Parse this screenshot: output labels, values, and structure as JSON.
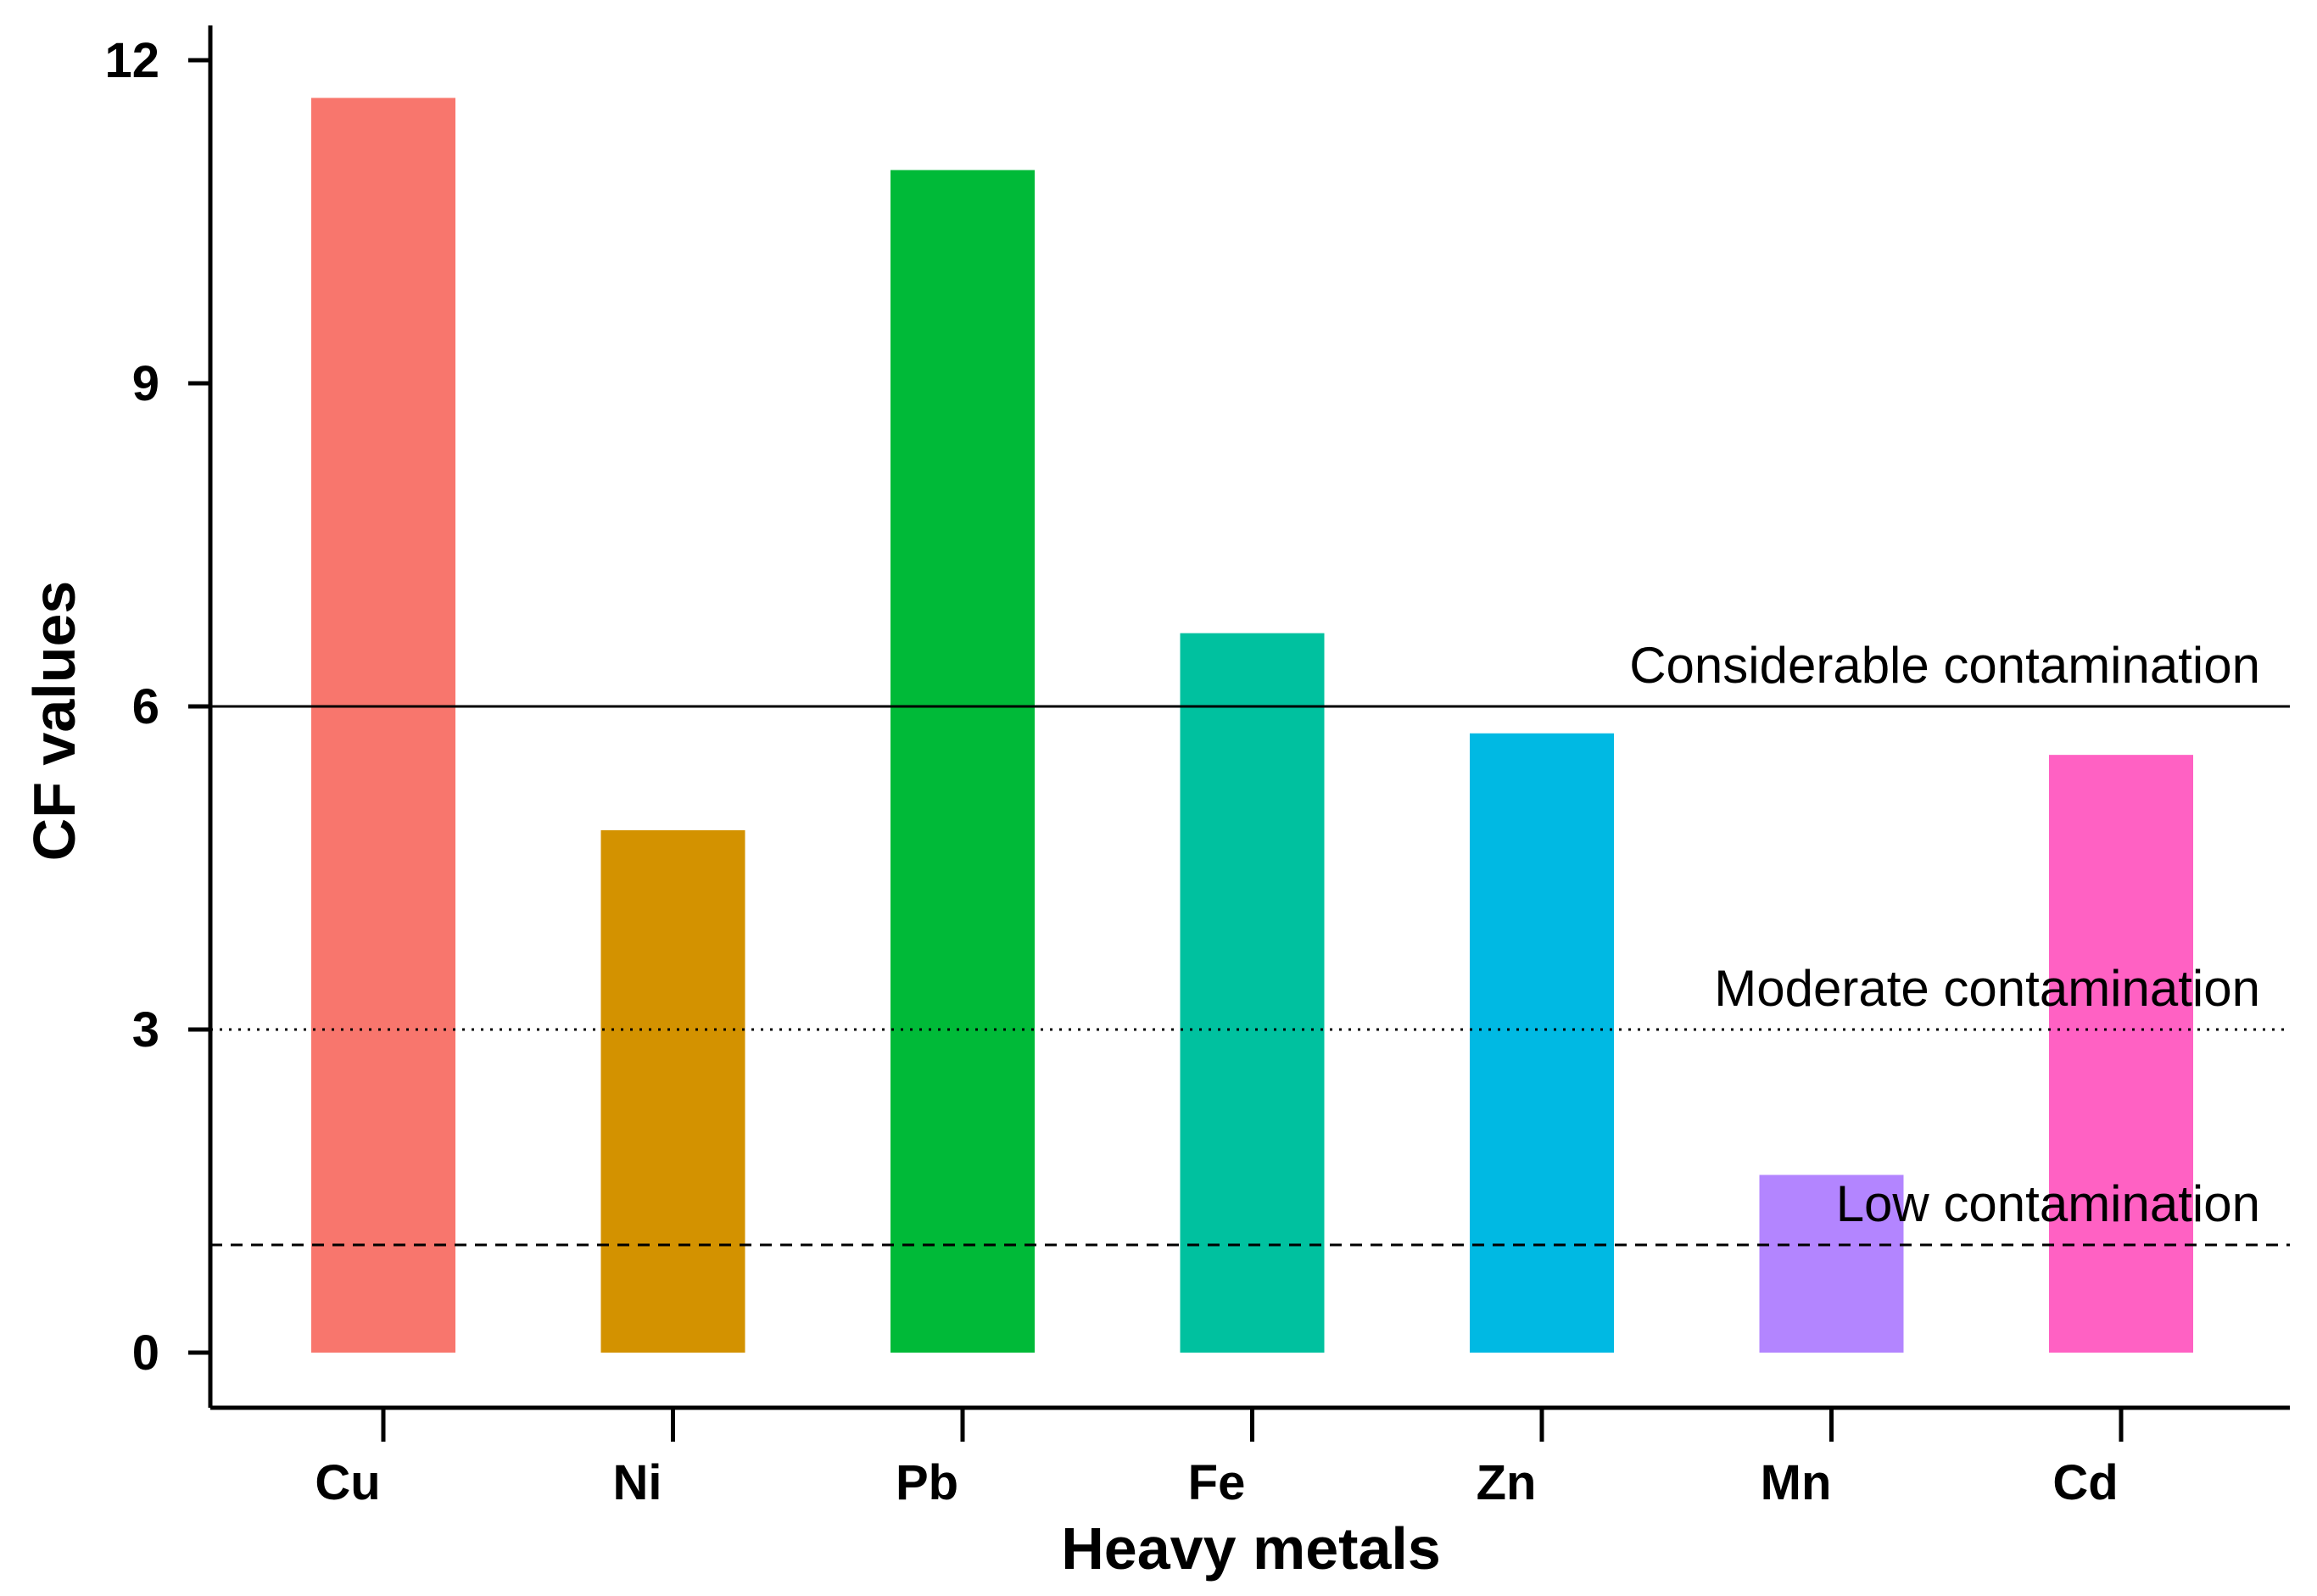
{
  "chart_data": {
    "type": "bar",
    "title": "",
    "xlabel": "Heavy metals",
    "ylabel": "CF values",
    "ylim": [
      -0.55,
      12.25
    ],
    "yticks": [
      0,
      3,
      6,
      9,
      12
    ],
    "categories": [
      "Cu",
      "Ni",
      "Pb",
      "Fe",
      "Zn",
      "Mn",
      "Cd"
    ],
    "values": [
      11.65,
      4.85,
      10.98,
      6.68,
      5.75,
      1.65,
      5.55
    ],
    "colors": [
      "#F8766D",
      "#D39200",
      "#00BA38",
      "#00C19F",
      "#00B9E3",
      "#B385FF",
      "#FF61C3"
    ],
    "reference_lines": [
      {
        "value": 6,
        "label": "Considerable contamination",
        "style": "solid"
      },
      {
        "value": 3,
        "label": "Moderate contamination",
        "style": "dotted"
      },
      {
        "value": 1,
        "label": "Low contamination",
        "style": "dashed"
      }
    ],
    "grid": false,
    "legend": "none"
  }
}
